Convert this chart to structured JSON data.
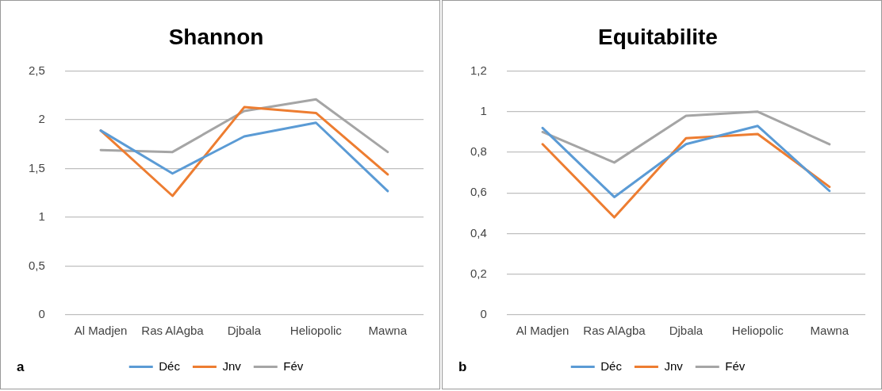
{
  "chart_data": [
    {
      "type": "line",
      "title": "Shannon",
      "categories": [
        "Al Madjen",
        "Ras AlAgba",
        "Djbala",
        "Heliopolic",
        "Mawna"
      ],
      "series": [
        {
          "name": "Déc",
          "color": "#5b9bd5",
          "values": [
            1.89,
            1.45,
            1.83,
            1.97,
            1.27
          ]
        },
        {
          "name": "Jnv",
          "color": "#ed7d31",
          "values": [
            1.89,
            1.22,
            2.13,
            2.07,
            1.44
          ]
        },
        {
          "name": "Fév",
          "color": "#a5a5a5",
          "values": [
            1.69,
            1.67,
            2.09,
            2.21,
            1.67
          ]
        }
      ],
      "ylim": [
        0,
        2.5
      ],
      "yticks": [
        0,
        {
          "value": 0.5,
          "label": "0,5"
        },
        1,
        {
          "value": 1.5,
          "label": "1,5"
        },
        2,
        {
          "value": 2.5,
          "label": "2,5"
        }
      ],
      "grid": "y",
      "legend": "bottom",
      "marker": "none",
      "annotations": [
        "a"
      ]
    },
    {
      "type": "line",
      "title": "Equitabilite",
      "categories": [
        "Al Madjen",
        "Ras AlAgba",
        "Djbala",
        "Heliopolic",
        "Mawna"
      ],
      "series": [
        {
          "name": "Déc",
          "color": "#5b9bd5",
          "values": [
            0.92,
            0.58,
            0.84,
            0.93,
            0.61
          ]
        },
        {
          "name": "Jnv",
          "color": "#ed7d31",
          "values": [
            0.84,
            0.48,
            0.87,
            0.89,
            0.63
          ]
        },
        {
          "name": "Fév",
          "color": "#a5a5a5",
          "values": [
            0.9,
            0.75,
            0.98,
            1,
            0.84
          ]
        }
      ],
      "ylim": [
        0,
        1.2
      ],
      "yticks": [
        0,
        {
          "value": 0.2,
          "label": "0,2"
        },
        {
          "value": 0.4,
          "label": "0,4"
        },
        {
          "value": 0.6,
          "label": "0,6"
        },
        {
          "value": 0.8,
          "label": "0,8"
        },
        1,
        {
          "value": 1.2,
          "label": "1,2"
        }
      ],
      "grid": "y",
      "legend": "bottom",
      "marker": "none",
      "annotations": [
        "b"
      ]
    }
  ]
}
